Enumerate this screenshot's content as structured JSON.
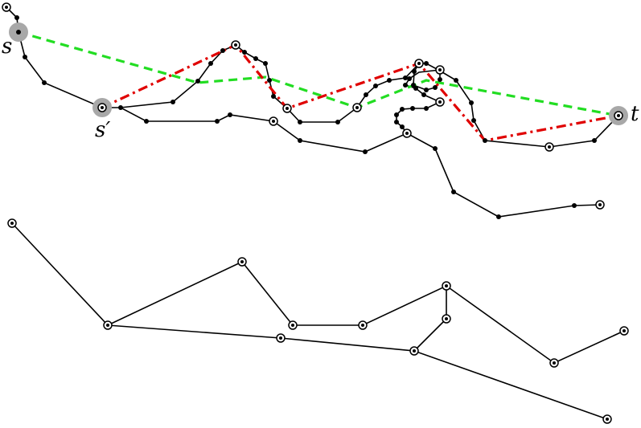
{
  "labels": {
    "s": "s",
    "s_prime": "s′",
    "t": "t"
  },
  "colors": {
    "path": "#000000",
    "red_dashdot": "#e00000",
    "green_dashed": "#22dd22",
    "highlight": "#a8a8a8"
  }
}
